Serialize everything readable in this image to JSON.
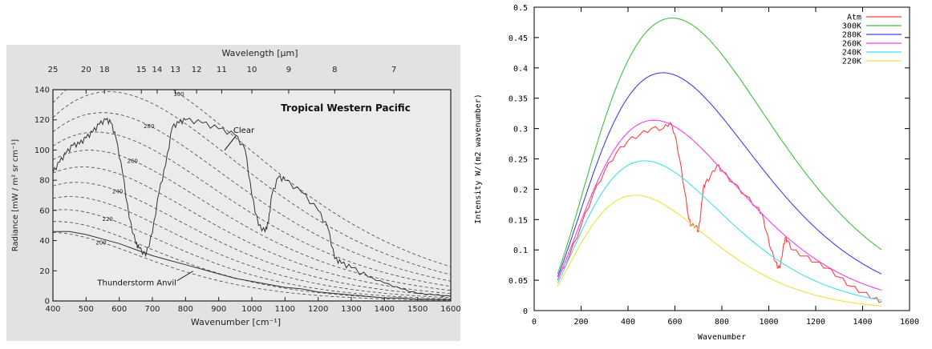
{
  "chart_data": [
    {
      "type": "line",
      "title": "Tropical Western Pacific",
      "xlabel": "Wavenumber [cm⁻¹]",
      "ylabel": "Radiance [mW / m² sr cm⁻¹]",
      "top_axis_label": "Wavelength [μm]",
      "xlim": [
        400,
        1600
      ],
      "ylim": [
        0,
        140
      ],
      "x_ticks": [
        400,
        500,
        600,
        700,
        800,
        900,
        1000,
        1100,
        1200,
        1300,
        1400,
        1500,
        1600
      ],
      "y_ticks": [
        0,
        20,
        40,
        60,
        80,
        100,
        120,
        140
      ],
      "top_ticks": [
        25,
        20,
        18,
        15,
        14,
        13,
        12,
        11,
        10,
        9,
        8,
        7
      ],
      "grid": false,
      "reference_temperatures": [
        200,
        210,
        220,
        230,
        240,
        250,
        260,
        270,
        280,
        290,
        300
      ],
      "reference_labels": [
        {
          "text": "300",
          "t": 300,
          "x": 780
        },
        {
          "text": "280",
          "t": 280,
          "x": 690
        },
        {
          "text": "260",
          "t": 260,
          "x": 640
        },
        {
          "text": "240",
          "t": 240,
          "x": 595
        },
        {
          "text": "220",
          "t": 220,
          "x": 565
        },
        {
          "text": "200",
          "t": 200,
          "x": 545
        }
      ],
      "annotations": [
        {
          "text": "Clear",
          "x": 1000,
          "y": 103
        },
        {
          "text": "Thunderstorm Anvil",
          "x": 750,
          "y": 24
        }
      ],
      "series": [
        {
          "name": "Clear",
          "x": [
            400,
            420,
            440,
            460,
            480,
            500,
            520,
            540,
            560,
            575,
            590,
            610,
            630,
            650,
            660,
            680,
            700,
            720,
            740,
            760,
            780,
            800,
            850,
            900,
            950,
            980,
            1000,
            1020,
            1040,
            1050,
            1060,
            1080,
            1100,
            1150,
            1200,
            1230,
            1250,
            1270,
            1300,
            1350,
            1400,
            1450,
            1500,
            1550,
            1600
          ],
          "y": [
            85,
            92,
            98,
            103,
            104,
            108,
            112,
            117,
            120,
            118,
            108,
            85,
            55,
            38,
            35,
            30,
            45,
            72,
            90,
            115,
            118,
            120,
            118,
            114,
            110,
            100,
            70,
            50,
            46,
            52,
            70,
            82,
            80,
            72,
            60,
            48,
            28,
            25,
            22,
            16,
            12,
            8,
            5,
            4,
            3
          ]
        },
        {
          "name": "Thunderstorm Anvil",
          "x": [
            400,
            450,
            500,
            550,
            600,
            650,
            700,
            750,
            800,
            850,
            900,
            950,
            1000,
            1050,
            1100,
            1150,
            1200,
            1250,
            1300,
            1350,
            1400,
            1450,
            1500,
            1550,
            1600
          ],
          "y": [
            46,
            46,
            44,
            41,
            38,
            34,
            30,
            27,
            24,
            21,
            18,
            15,
            13,
            11,
            9,
            8,
            6,
            5,
            4,
            3,
            2,
            2,
            1,
            1,
            1
          ]
        }
      ]
    },
    {
      "type": "line",
      "xlabel": "Wavenumber",
      "ylabel": "Intensity W/(m2 wavenumber)",
      "xlim": [
        0,
        1600
      ],
      "ylim": [
        0,
        0.5
      ],
      "x_ticks": [
        0,
        200,
        400,
        600,
        800,
        1000,
        1200,
        1400,
        1600
      ],
      "y_ticks": [
        0,
        0.05,
        0.1,
        0.15,
        0.2,
        0.25,
        0.3,
        0.35,
        0.4,
        0.45,
        0.5
      ],
      "y_tick_labels": [
        "0",
        "0.05",
        "0.1",
        "0.15",
        "0.2",
        "0.25",
        "0.3",
        "0.35",
        "0.4",
        "0.45",
        "0.5"
      ],
      "grid": false,
      "legend_position": "top-right",
      "series": [
        {
          "name": "Atm",
          "color": "#ff4040",
          "x": [
            100,
            150,
            200,
            250,
            300,
            350,
            400,
            450,
            500,
            550,
            580,
            600,
            620,
            640,
            660,
            670,
            690,
            700,
            710,
            720,
            730,
            750,
            780,
            800,
            850,
            900,
            950,
            970,
            990,
            1010,
            1030,
            1040,
            1050,
            1060,
            1070,
            1080,
            1100,
            1150,
            1200,
            1250,
            1300,
            1350,
            1400,
            1450,
            1480
          ],
          "y": [
            0.05,
            0.09,
            0.14,
            0.19,
            0.23,
            0.26,
            0.28,
            0.29,
            0.3,
            0.3,
            0.31,
            0.29,
            0.25,
            0.2,
            0.15,
            0.14,
            0.14,
            0.13,
            0.16,
            0.2,
            0.21,
            0.22,
            0.24,
            0.23,
            0.21,
            0.19,
            0.17,
            0.16,
            0.13,
            0.1,
            0.08,
            0.07,
            0.075,
            0.1,
            0.12,
            0.115,
            0.1,
            0.09,
            0.08,
            0.07,
            0.055,
            0.04,
            0.03,
            0.02,
            0.015
          ]
        },
        {
          "name": "300K",
          "color": "#40c040",
          "temperature": 300
        },
        {
          "name": "280K",
          "color": "#4040f0",
          "temperature": 280
        },
        {
          "name": "260K",
          "color": "#f040f0",
          "temperature": 260
        },
        {
          "name": "240K",
          "color": "#40e0f0",
          "temperature": 240
        },
        {
          "name": "220K",
          "color": "#f0e040",
          "temperature": 220
        }
      ],
      "x_range_curves": [
        100,
        1480
      ]
    }
  ]
}
